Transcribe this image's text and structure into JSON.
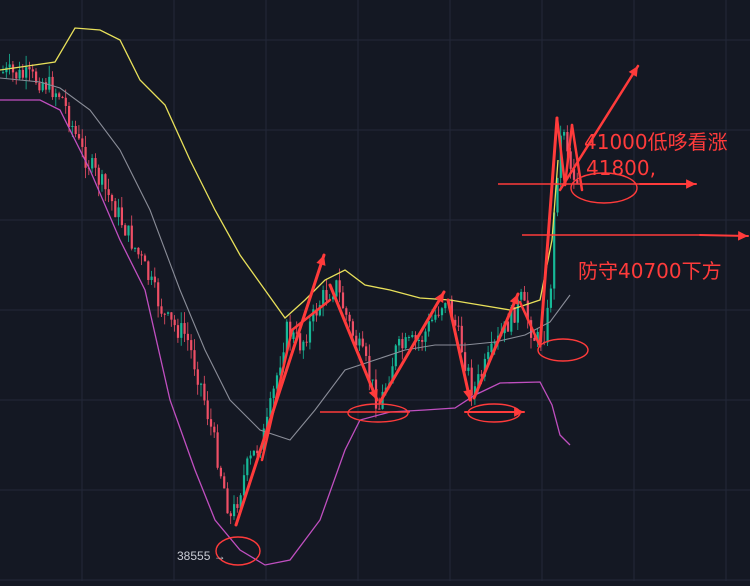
{
  "chart_data": {
    "type": "candlestick",
    "indicators": [
      "bollinger-upper",
      "bollinger-middle",
      "bollinger-lower"
    ],
    "grid": true,
    "low_label": "38555 →",
    "annotations": [
      {
        "text": "41000低哆看涨"
      },
      {
        "text": "41800,"
      },
      {
        "text": "防守40700下方"
      }
    ],
    "colors": {
      "background": "#141823",
      "grid": "#232838",
      "up": "#17b897",
      "down": "#ef4f66",
      "upper_band": "#e8e05a",
      "middle_band": "#8a8d98",
      "lower_band": "#c04fc0",
      "annotation": "#ff3b3b"
    }
  }
}
